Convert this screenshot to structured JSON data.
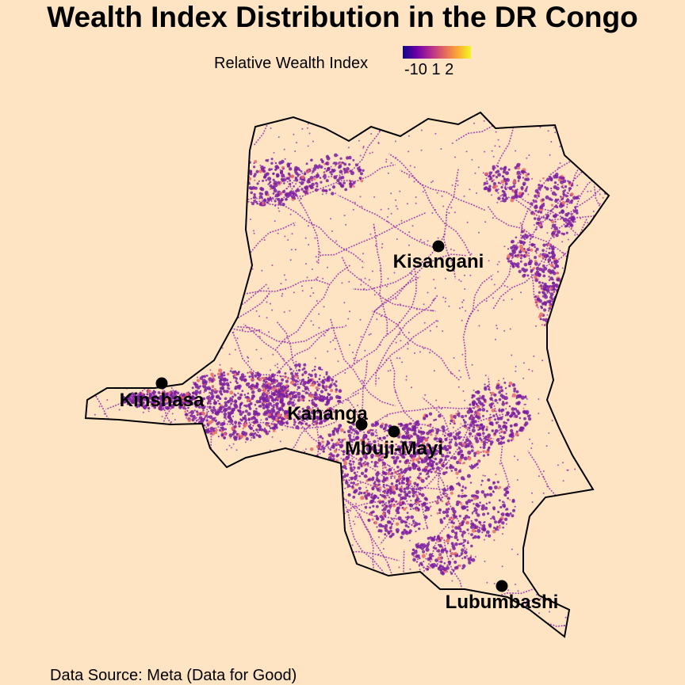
{
  "title": "Wealth Index Distribution in the DR Congo",
  "legend": {
    "label": "Relative Wealth Index",
    "ticks_text": "-10 1 2",
    "colors": [
      "#0d0887",
      "#6a00a8",
      "#b12a90",
      "#e16462",
      "#fca636",
      "#f0f921"
    ]
  },
  "cities": [
    {
      "name": "Kisangani"
    },
    {
      "name": "Kinshasa"
    },
    {
      "name": "Kananga"
    },
    {
      "name": "Mbuji-Mayi"
    },
    {
      "name": "Lubumbashi"
    }
  ],
  "caption": "Data Source: Meta (Data for Good)",
  "colors": {
    "background": "#ffe4c4",
    "border": "#000000",
    "dense_points": "#7a1fa0",
    "sparse_points": "#8e24aa",
    "rich_points": "#e8686a"
  }
}
